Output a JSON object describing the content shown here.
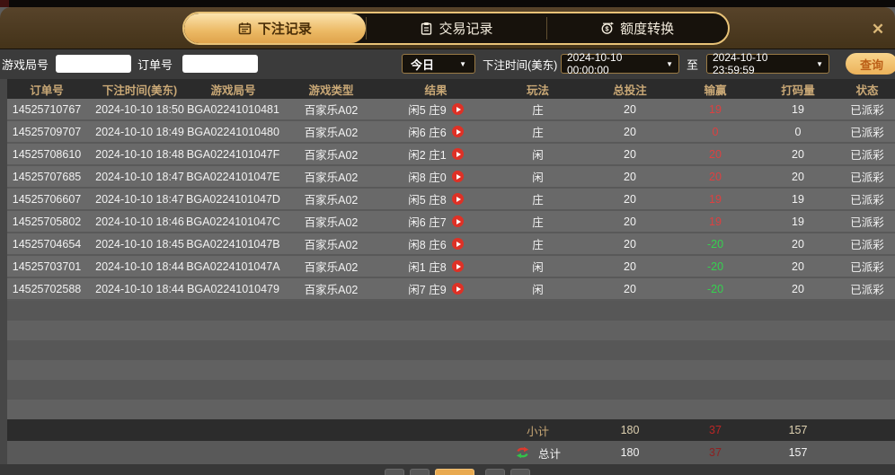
{
  "tabs": [
    {
      "label": "下注记录",
      "icon": "calendar-icon",
      "active": true
    },
    {
      "label": "交易记录",
      "icon": "clipboard-icon",
      "active": false
    },
    {
      "label": "额度转换",
      "icon": "coin-transfer-icon",
      "active": false
    }
  ],
  "close_label": "✕",
  "filters": {
    "game_round_label": "游戏局号",
    "order_no_label": "订单号",
    "game_round_value": "",
    "order_no_value": "",
    "range_selected": "今日",
    "bet_time_label": "下注时间(美东)",
    "start_time": "2024-10-10 00:00:00",
    "to_label": "至",
    "end_time": "2024-10-10 23:59:59",
    "query_label": "查询"
  },
  "table": {
    "headers": [
      "订单号",
      "下注时间(美东)",
      "游戏局号",
      "游戏类型",
      "结果",
      "玩法",
      "总投注",
      "输赢",
      "打码量",
      "状态"
    ],
    "rows": [
      [
        "14525710767",
        "2024-10-10 18:50",
        "BGA02241010481",
        "百家乐A02",
        "闲5 庄9",
        "庄",
        "20",
        "19",
        "19",
        "已派彩"
      ],
      [
        "14525709707",
        "2024-10-10 18:49",
        "BGA02241010480",
        "百家乐A02",
        "闲6 庄6",
        "庄",
        "20",
        "0",
        "0",
        "已派彩"
      ],
      [
        "14525708610",
        "2024-10-10 18:48",
        "BGA0224101047F",
        "百家乐A02",
        "闲2 庄1",
        "闲",
        "20",
        "20",
        "20",
        "已派彩"
      ],
      [
        "14525707685",
        "2024-10-10 18:47",
        "BGA0224101047E",
        "百家乐A02",
        "闲8 庄0",
        "闲",
        "20",
        "20",
        "20",
        "已派彩"
      ],
      [
        "14525706607",
        "2024-10-10 18:47",
        "BGA0224101047D",
        "百家乐A02",
        "闲5 庄8",
        "庄",
        "20",
        "19",
        "19",
        "已派彩"
      ],
      [
        "14525705802",
        "2024-10-10 18:46",
        "BGA0224101047C",
        "百家乐A02",
        "闲6 庄7",
        "庄",
        "20",
        "19",
        "19",
        "已派彩"
      ],
      [
        "14525704654",
        "2024-10-10 18:45",
        "BGA0224101047B",
        "百家乐A02",
        "闲8 庄6",
        "庄",
        "20",
        "-20",
        "20",
        "已派彩"
      ],
      [
        "14525703701",
        "2024-10-10 18:44",
        "BGA0224101047A",
        "百家乐A02",
        "闲1 庄8",
        "闲",
        "20",
        "-20",
        "20",
        "已派彩"
      ],
      [
        "14525702588",
        "2024-10-10 18:44",
        "BGA02241010479",
        "百家乐A02",
        "闲7 庄9",
        "闲",
        "20",
        "-20",
        "20",
        "已派彩"
      ]
    ]
  },
  "summary": {
    "subtotal": {
      "label": "小计",
      "total_bet": "180",
      "win_loss": "37",
      "turnover": "157"
    },
    "total": {
      "label": "总计",
      "total_bet": "180",
      "win_loss": "37",
      "turnover": "157"
    }
  },
  "colors": {
    "accent_gold": "#e8c277",
    "win_red": "#dd4040",
    "loss_green": "#35d14f",
    "header_tan": "#c9a876"
  }
}
